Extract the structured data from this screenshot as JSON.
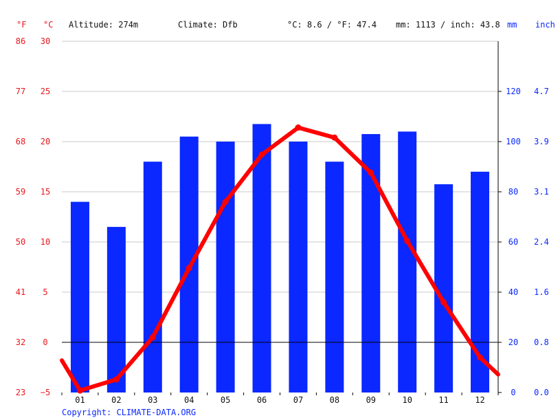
{
  "header": {
    "unit_f": "°F",
    "unit_c": "°C",
    "altitude": "Altitude: 274m",
    "climate": "Climate: Dfb",
    "temp_avg": "°C: 8.6 / °F: 47.4",
    "precip_total": "mm: 1113 / inch: 43.8",
    "unit_mm": "mm",
    "unit_inch": "inch"
  },
  "footer": {
    "copyright": "Copyright: CLIMATE-DATA.ORG"
  },
  "colors": {
    "temperature": "#ff0000",
    "temperature_labels": "#e8151b",
    "precipitation": "#0a28ff",
    "grid": "#c8c8c8",
    "zero_line": "#000000"
  },
  "chart_data": {
    "type": "bar",
    "categories": [
      "01",
      "02",
      "03",
      "04",
      "05",
      "06",
      "07",
      "08",
      "09",
      "10",
      "11",
      "12"
    ],
    "series": [
      {
        "kind": "bar",
        "axis": "right",
        "values": [
          76,
          66,
          92,
          102,
          100,
          107,
          100,
          92,
          103,
          104,
          83,
          88
        ]
      },
      {
        "kind": "line",
        "axis": "left",
        "values": [
          -4.8,
          -3.7,
          0.5,
          7.4,
          14.0,
          18.7,
          21.4,
          20.4,
          16.9,
          10.1,
          4.0,
          -1.5
        ]
      }
    ],
    "line_edges": {
      "start": -1.8,
      "end": -3.2
    },
    "axes": {
      "left_celsius": {
        "ylim": [
          -5,
          30
        ],
        "ticks": [
          "30",
          "25",
          "20",
          "15",
          "10",
          "5",
          "0",
          "−5"
        ]
      },
      "left_fahrenheit": {
        "ticks": [
          "86",
          "77",
          "68",
          "59",
          "50",
          "41",
          "32",
          "23"
        ]
      },
      "right_mm": {
        "ylim": [
          0,
          140
        ],
        "ticks": [
          "120",
          "100",
          "80",
          "60",
          "40",
          "20",
          "0"
        ]
      },
      "right_inch": {
        "ticks": [
          "4.7",
          "3.9",
          "3.1",
          "2.4",
          "1.6",
          "0.8",
          "0.0"
        ]
      }
    },
    "grid": true
  }
}
